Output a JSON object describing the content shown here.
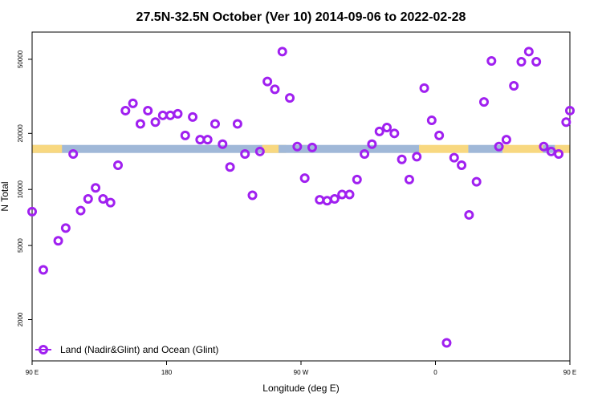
{
  "chart_data": {
    "type": "scatter",
    "title": "27.5N-32.5N October (Ver 10)   2014-09-06 to 2022-02-28",
    "xlabel": "Longitude (deg E)",
    "ylabel": "N Total",
    "xlim": [
      90,
      450
    ],
    "ylim_log": [
      1200,
      70000
    ],
    "y_scale": "log",
    "x_ticks": [
      {
        "value": 90,
        "label": "90 E"
      },
      {
        "value": 180,
        "label": "180"
      },
      {
        "value": 270,
        "label": "90 W"
      },
      {
        "value": 360,
        "label": "0"
      },
      {
        "value": 450,
        "label": "90 E"
      },
      {
        "value": 540,
        "label": "180"
      }
    ],
    "y_ticks": [
      {
        "value": 2000,
        "label": "2000"
      },
      {
        "value": 5000,
        "label": "5000"
      },
      {
        "value": 10000,
        "label": "10000"
      },
      {
        "value": 20000,
        "label": "20000"
      },
      {
        "value": 50000,
        "label": "50000"
      }
    ],
    "surface_band_y": 16500,
    "surface_segments": [
      {
        "type": "ocean",
        "x_start": 90,
        "x_end": 255
      },
      {
        "type": "land",
        "x_start": 90,
        "x_end": 110
      },
      {
        "type": "land",
        "x_start": 244,
        "x_end": 260
      },
      {
        "type": "land",
        "x_start": 265,
        "x_end": 278
      },
      {
        "type": "ocean",
        "x_start": 255,
        "x_end": 350
      },
      {
        "type": "land",
        "x_start": 349,
        "x_end": 382
      },
      {
        "type": "ocean",
        "x_start": 382,
        "x_end": 405
      },
      {
        "type": "land",
        "x_start": 405,
        "x_end": 432
      },
      {
        "type": "ocean",
        "x_start": 432,
        "x_end": 440
      },
      {
        "type": "land",
        "x_start": 440,
        "x_end": 450
      }
    ],
    "colors": {
      "points": "#a020f0",
      "ocean": "#a0b8d8",
      "land": "#f8d880"
    },
    "series": [
      {
        "name": "Land (Nadir&Glint) and Ocean (Glint)",
        "x": [
          90,
          97.5,
          107.5,
          112.5,
          117.5,
          122.5,
          127.5,
          132.5,
          137.5,
          142.5,
          147.5,
          152.5,
          157.5,
          162.5,
          167.5,
          172.5,
          177.5,
          182.5,
          187.5,
          192.5,
          197.5,
          202.5,
          207.5,
          212.5,
          217.5,
          222.5,
          227.5,
          232.5,
          237.5,
          242.5,
          247.5,
          252.5,
          257.5,
          262.5,
          267.5,
          272.5,
          277.5,
          282.5,
          287.5,
          292.5,
          297.5,
          302.5,
          307.5,
          312.5,
          317.5,
          322.5,
          327.5,
          332.5,
          337.5,
          342.5,
          347.5,
          352.5,
          357.5,
          362.5,
          367.5,
          372.5,
          377.5,
          382.5,
          387.5,
          392.5,
          397.5,
          402.5,
          407.5,
          412.5,
          417.5,
          422.5,
          427.5,
          432.5,
          437.5,
          442.5,
          447.5,
          450
        ],
        "y": [
          7600,
          3700,
          5300,
          6200,
          15500,
          7700,
          8900,
          10200,
          8900,
          8500,
          13500,
          26500,
          29000,
          22500,
          26500,
          23000,
          25000,
          25000,
          25500,
          19500,
          24500,
          18500,
          18500,
          22500,
          17500,
          13200,
          22500,
          15500,
          9300,
          16000,
          38000,
          34500,
          55000,
          31000,
          17000,
          11500,
          16800,
          8800,
          8700,
          8900,
          9400,
          9400,
          11300,
          15500,
          17500,
          20500,
          21500,
          20000,
          14500,
          11300,
          15000,
          35000,
          23500,
          19500,
          1500,
          14800,
          13500,
          7300,
          11000,
          29500,
          49000,
          17000,
          18500,
          36000,
          48500,
          55000,
          48500,
          17000,
          16000,
          15500,
          23000,
          26500
        ]
      }
    ],
    "legend": {
      "position": "bottom-left",
      "label": "Land (Nadir&Glint) and Ocean (Glint)"
    }
  }
}
